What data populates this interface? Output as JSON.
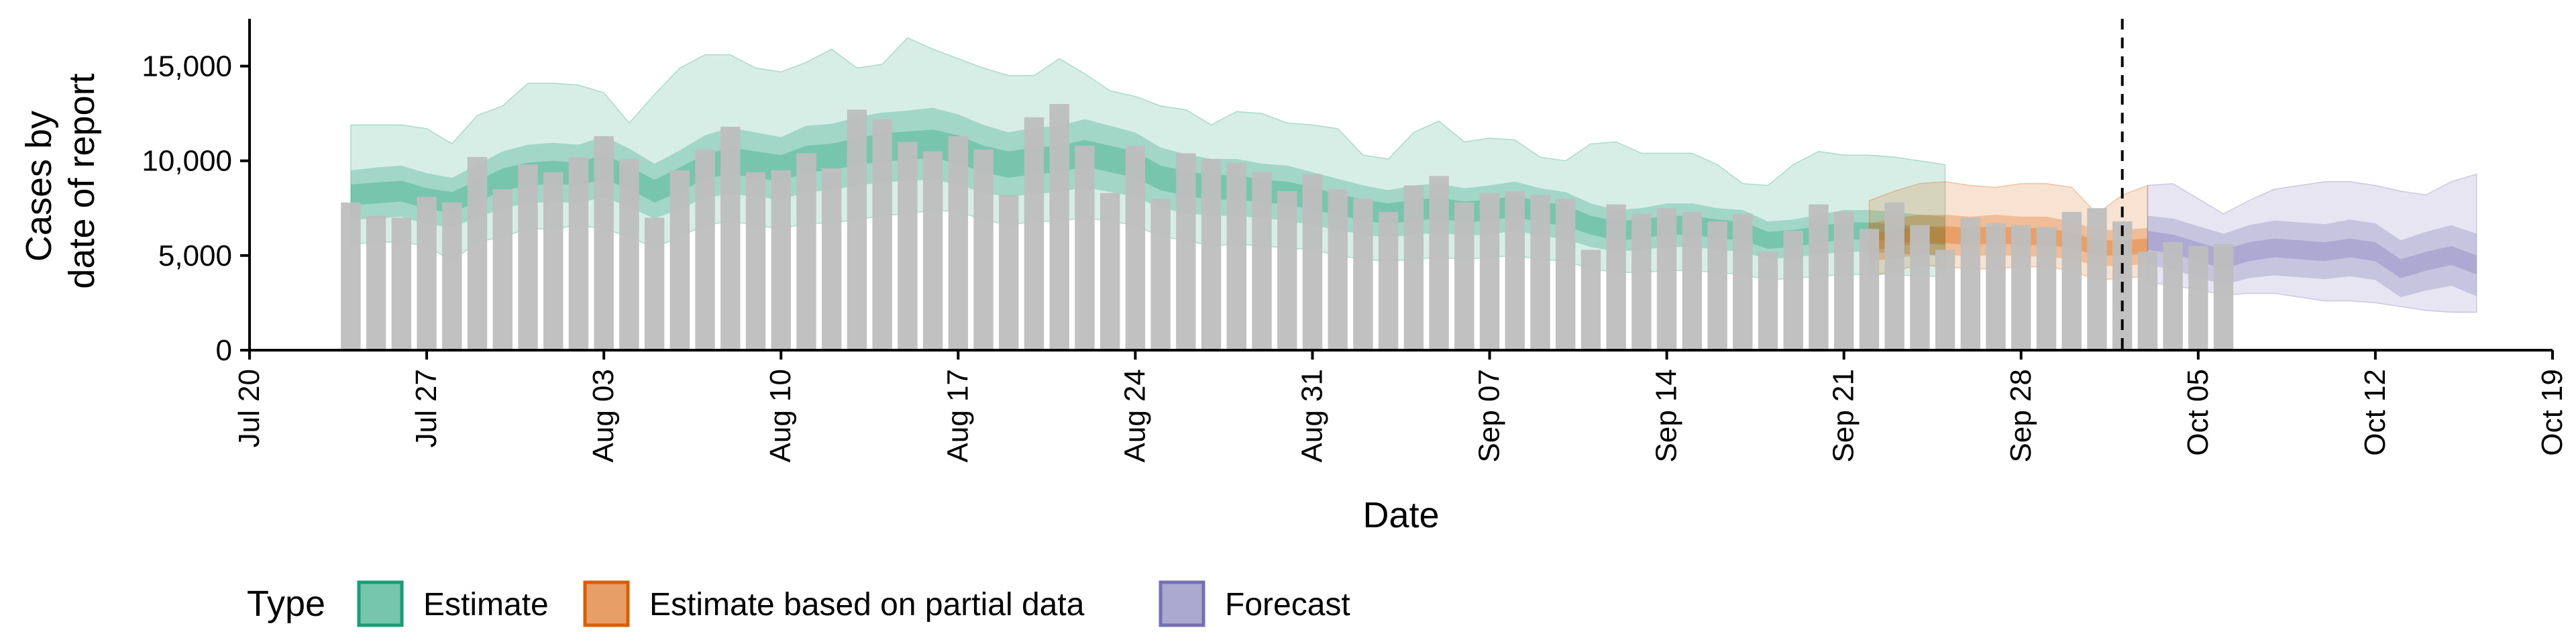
{
  "chart_data": {
    "type": "bar",
    "xlabel": "Date",
    "ylabel_lines": [
      "Cases by",
      "date of report"
    ],
    "ylim": [
      0,
      17500
    ],
    "y_ticks": [
      0,
      5000,
      10000,
      15000
    ],
    "y_tick_labels": [
      "0",
      "5,000",
      "10,000",
      "15,000"
    ],
    "x_range_days": [
      "2020-07-20",
      "2020-10-19"
    ],
    "x_ticks": [
      "Jul 20",
      "Jul 27",
      "Aug 03",
      "Aug 10",
      "Aug 17",
      "Aug 24",
      "Aug 31",
      "Sep 07",
      "Sep 14",
      "Sep 21",
      "Sep 28",
      "Oct 05",
      "Oct 12",
      "Oct 19"
    ],
    "vline_date": "2020-10-02",
    "bars": {
      "start_date": "2020-07-24",
      "color": "#bebebe",
      "values": [
        7800,
        7100,
        7000,
        8100,
        7800,
        10200,
        8500,
        9800,
        9400,
        10200,
        11300,
        10100,
        7000,
        9500,
        10600,
        11800,
        9400,
        9500,
        10400,
        9600,
        12700,
        12200,
        11000,
        10500,
        11300,
        10600,
        8200,
        12300,
        13000,
        10800,
        8300,
        10800,
        8000,
        10400,
        10100,
        9900,
        9400,
        8400,
        9300,
        8500,
        8000,
        7300,
        8700,
        9200,
        7800,
        8300,
        8400,
        8200,
        8000,
        5300,
        7700,
        7200,
        7500,
        7300,
        6800,
        7200,
        5200,
        6300,
        7700,
        7300,
        6400,
        7800,
        6600,
        5300,
        7000,
        6700,
        6600,
        6500,
        7300,
        7500,
        6800,
        5200,
        5700,
        5500,
        5600
      ]
    },
    "series": [
      {
        "name": "Estimate",
        "color": "#1b9e77",
        "start_date": "2020-07-24",
        "median": [
          8200,
          8300,
          8400,
          8000,
          7800,
          8400,
          9000,
          9300,
          9400,
          9300,
          9700,
          9100,
          8400,
          9000,
          9700,
          10000,
          9800,
          9600,
          10100,
          10200,
          10500,
          10700,
          10800,
          10900,
          10600,
          10100,
          9800,
          10000,
          10100,
          10400,
          10100,
          9800,
          9100,
          8800,
          8600,
          8600,
          8400,
          8300,
          8000,
          7700,
          7400,
          7200,
          7400,
          7500,
          7300,
          7400,
          7600,
          7300,
          7100,
          6600,
          6300,
          6400,
          6600,
          6600,
          6400,
          6300,
          5800,
          5900,
          6100,
          6300,
          6300,
          6200,
          6100,
          6000
        ],
        "inner_half": [
          550,
          550,
          550,
          550,
          550,
          550,
          600,
          600,
          600,
          600,
          650,
          600,
          600,
          650,
          650,
          700,
          700,
          700,
          700,
          700,
          700,
          750,
          750,
          750,
          750,
          700,
          700,
          700,
          700,
          700,
          700,
          700,
          650,
          650,
          650,
          650,
          600,
          600,
          600,
          550,
          550,
          550,
          550,
          550,
          550,
          550,
          550,
          550,
          550,
          500,
          500,
          500,
          500,
          500,
          500,
          500,
          450,
          450,
          450,
          450,
          450,
          450,
          450,
          450
        ],
        "mid_half": [
          1300,
          1350,
          1350,
          1350,
          1300,
          1400,
          1500,
          1550,
          1550,
          1550,
          1600,
          1550,
          1450,
          1550,
          1650,
          1750,
          1700,
          1650,
          1750,
          1750,
          1800,
          1850,
          1850,
          1900,
          1850,
          1800,
          1700,
          1750,
          1750,
          1800,
          1750,
          1700,
          1600,
          1550,
          1500,
          1500,
          1450,
          1450,
          1400,
          1350,
          1300,
          1250,
          1300,
          1300,
          1250,
          1300,
          1300,
          1250,
          1250,
          1150,
          1100,
          1100,
          1150,
          1150,
          1100,
          1100,
          1000,
          1000,
          1050,
          1100,
          1100,
          1100,
          1050,
          1050
        ],
        "outer_upper": [
          11900,
          11900,
          11900,
          11700,
          10900,
          12400,
          12900,
          14100,
          14100,
          14000,
          13600,
          12000,
          13500,
          14900,
          15600,
          15600,
          14900,
          14700,
          15200,
          15900,
          14900,
          15100,
          16500,
          15900,
          15400,
          14900,
          14500,
          14500,
          15400,
          14600,
          13700,
          13400,
          12900,
          12700,
          11900,
          12600,
          12500,
          12000,
          11900,
          11700,
          10300,
          10100,
          11500,
          12100,
          11000,
          11200,
          11100,
          10200,
          10000,
          10900,
          11000,
          10400,
          10400,
          10400,
          9800,
          8800,
          8700,
          9800,
          10500,
          10300,
          10300,
          10200,
          10000,
          9800
        ],
        "outer_lower": [
          5600,
          5700,
          5700,
          5500,
          4700,
          5700,
          6000,
          6400,
          6400,
          6600,
          6400,
          6000,
          5400,
          6000,
          6600,
          6800,
          6600,
          6400,
          6700,
          6700,
          6900,
          7100,
          7200,
          7400,
          7300,
          6900,
          6600,
          6800,
          6800,
          7000,
          6800,
          6600,
          6000,
          5800,
          5500,
          5600,
          5500,
          5400,
          5300,
          5000,
          4800,
          4700,
          4800,
          4900,
          4800,
          4900,
          5000,
          4800,
          4700,
          4300,
          4100,
          4100,
          4200,
          4200,
          4100,
          4000,
          3700,
          3800,
          3900,
          4000,
          4000,
          4000,
          3900,
          3900
        ]
      },
      {
        "name": "Estimate based on partial data",
        "color": "#d95f02",
        "start_date": "2020-09-22",
        "median": [
          5700,
          5900,
          6100,
          6100,
          6000,
          6100,
          6000,
          6000,
          5800,
          5400,
          5400,
          5500
        ],
        "inner_half": [
          450,
          450,
          450,
          450,
          450,
          450,
          450,
          450,
          400,
          400,
          400,
          400
        ],
        "mid_half": [
          1000,
          1050,
          1050,
          1050,
          1050,
          1050,
          1050,
          1050,
          1000,
          950,
          950,
          950
        ],
        "outer_upper": [
          7900,
          8400,
          8800,
          8900,
          8700,
          8600,
          8800,
          8800,
          8600,
          7200,
          8200,
          8700
        ],
        "outer_lower": [
          3900,
          4200,
          4500,
          4400,
          4300,
          4300,
          4400,
          4400,
          4200,
          3700,
          3800,
          3900
        ]
      },
      {
        "name": "Forecast",
        "color": "#7570b3",
        "start_date": "2020-10-03",
        "median": [
          5800,
          5600,
          5200,
          4800,
          5200,
          5400,
          5300,
          5200,
          5400,
          5200,
          4300,
          4700,
          5000,
          4500
        ],
        "inner_half": [
          500,
          500,
          500,
          500,
          500,
          500,
          500,
          500,
          500,
          500,
          500,
          500,
          500,
          500
        ],
        "mid_half": [
          1300,
          1350,
          1350,
          1350,
          1400,
          1450,
          1450,
          1450,
          1500,
          1500,
          1500,
          1550,
          1600,
          1650
        ],
        "outer_upper": [
          8700,
          8800,
          8000,
          7200,
          7900,
          8500,
          8700,
          8900,
          8900,
          8700,
          8400,
          8200,
          8900,
          9300
        ],
        "outer_lower": [
          3600,
          3400,
          3200,
          2900,
          3000,
          3000,
          2800,
          2600,
          2600,
          2500,
          2300,
          2100,
          2000,
          2000
        ]
      }
    ],
    "legend": {
      "title": "Type",
      "position": "bottom-left",
      "entries": [
        "Estimate",
        "Estimate based on partial data",
        "Forecast"
      ]
    }
  }
}
